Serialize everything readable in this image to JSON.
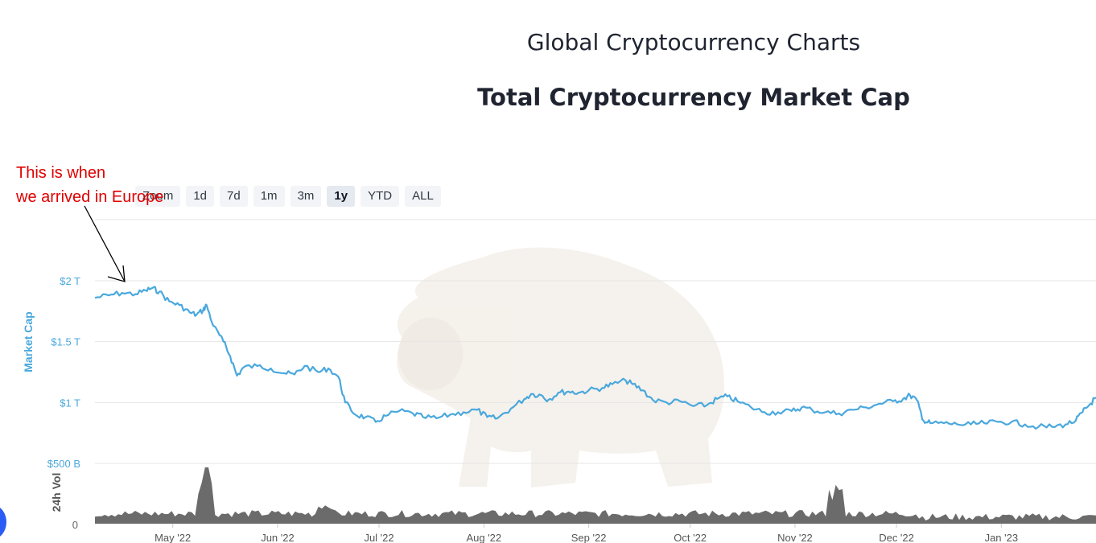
{
  "page": {
    "title": "Global Cryptocurrency Charts",
    "chart_title": "Total Cryptocurrency Market Cap"
  },
  "range_buttons": [
    {
      "label": "Zoom",
      "active": false
    },
    {
      "label": "1d",
      "active": false
    },
    {
      "label": "7d",
      "active": false
    },
    {
      "label": "1m",
      "active": false
    },
    {
      "label": "3m",
      "active": false
    },
    {
      "label": "1y",
      "active": true
    },
    {
      "label": "YTD",
      "active": false
    },
    {
      "label": "ALL",
      "active": false
    }
  ],
  "annotation": {
    "lines": [
      "This is when",
      "we arrived in Europe"
    ],
    "color": "#e00000"
  },
  "colors": {
    "market_cap": "#4aa8dd",
    "volume": "#6b6b6b",
    "grid": "#e6e6e6",
    "axis_label": "#4aa8dd"
  },
  "chart_data": [
    {
      "type": "line",
      "ylabel": "Market Cap",
      "ylim": [
        0,
        2.5
      ],
      "yticks": [
        {
          "value": 0.5,
          "label": "$500 B"
        },
        {
          "value": 1.0,
          "label": "$1 T"
        },
        {
          "value": 1.5,
          "label": "$1.5 T"
        },
        {
          "value": 2.0,
          "label": "$2 T"
        }
      ],
      "xlim": [
        "2022-04-08",
        "2023-01-29"
      ],
      "xticks": [
        {
          "date": "2022-05-01",
          "label": "May '22"
        },
        {
          "date": "2022-06-01",
          "label": "Jun '22"
        },
        {
          "date": "2022-07-01",
          "label": "Jul '22"
        },
        {
          "date": "2022-08-01",
          "label": "Aug '22"
        },
        {
          "date": "2022-09-01",
          "label": "Sep '22"
        },
        {
          "date": "2022-10-01",
          "label": "Oct '22"
        },
        {
          "date": "2022-11-01",
          "label": "Nov '22"
        },
        {
          "date": "2022-12-01",
          "label": "Dec '22"
        },
        {
          "date": "2023-01-01",
          "label": "Jan '23"
        }
      ],
      "grid": true,
      "series": [
        {
          "points": [
            [
              "2022-04-08",
              1.86
            ],
            [
              "2022-04-12",
              1.88
            ],
            [
              "2022-04-16",
              1.9
            ],
            [
              "2022-04-20",
              1.89
            ],
            [
              "2022-04-23",
              1.92
            ],
            [
              "2022-04-25",
              1.94
            ],
            [
              "2022-04-27",
              1.91
            ],
            [
              "2022-04-30",
              1.83
            ],
            [
              "2022-05-03",
              1.8
            ],
            [
              "2022-05-06",
              1.74
            ],
            [
              "2022-05-08",
              1.72
            ],
            [
              "2022-05-10",
              1.76
            ],
            [
              "2022-05-11",
              1.8
            ],
            [
              "2022-05-13",
              1.63
            ],
            [
              "2022-05-16",
              1.5
            ],
            [
              "2022-05-18",
              1.38
            ],
            [
              "2022-05-20",
              1.22
            ],
            [
              "2022-05-22",
              1.29
            ],
            [
              "2022-05-26",
              1.3
            ],
            [
              "2022-05-30",
              1.28
            ],
            [
              "2022-06-03",
              1.24
            ],
            [
              "2022-06-06",
              1.23
            ],
            [
              "2022-06-09",
              1.3
            ],
            [
              "2022-06-13",
              1.25
            ],
            [
              "2022-06-16",
              1.28
            ],
            [
              "2022-06-19",
              1.21
            ],
            [
              "2022-06-21",
              1.0
            ],
            [
              "2022-06-24",
              0.9
            ],
            [
              "2022-06-27",
              0.88
            ],
            [
              "2022-06-30",
              0.84
            ],
            [
              "2022-07-03",
              0.89
            ],
            [
              "2022-07-07",
              0.93
            ],
            [
              "2022-07-11",
              0.91
            ],
            [
              "2022-07-14",
              0.88
            ],
            [
              "2022-07-18",
              0.87
            ],
            [
              "2022-07-22",
              0.9
            ],
            [
              "2022-07-26",
              0.92
            ],
            [
              "2022-07-30",
              0.94
            ],
            [
              "2022-08-02",
              0.88
            ],
            [
              "2022-08-05",
              0.87
            ],
            [
              "2022-08-09",
              0.95
            ],
            [
              "2022-08-13",
              1.03
            ],
            [
              "2022-08-15",
              1.07
            ],
            [
              "2022-08-18",
              1.06
            ],
            [
              "2022-08-20",
              1.02
            ],
            [
              "2022-08-23",
              1.08
            ],
            [
              "2022-08-26",
              1.09
            ],
            [
              "2022-08-29",
              1.08
            ],
            [
              "2022-09-01",
              1.1
            ],
            [
              "2022-09-05",
              1.12
            ],
            [
              "2022-09-08",
              1.15
            ],
            [
              "2022-09-12",
              1.18
            ],
            [
              "2022-09-14",
              1.15
            ],
            [
              "2022-09-17",
              1.1
            ],
            [
              "2022-09-20",
              1.02
            ],
            [
              "2022-09-24",
              1.0
            ],
            [
              "2022-09-28",
              1.01
            ],
            [
              "2022-10-02",
              0.97
            ],
            [
              "2022-10-06",
              0.98
            ],
            [
              "2022-10-09",
              1.03
            ],
            [
              "2022-10-12",
              1.05
            ],
            [
              "2022-10-15",
              1.01
            ],
            [
              "2022-10-19",
              0.96
            ],
            [
              "2022-10-23",
              0.92
            ],
            [
              "2022-10-27",
              0.92
            ],
            [
              "2022-10-31",
              0.93
            ],
            [
              "2022-11-03",
              0.96
            ],
            [
              "2022-11-06",
              0.94
            ],
            [
              "2022-11-10",
              0.92
            ],
            [
              "2022-11-14",
              0.91
            ],
            [
              "2022-11-18",
              0.94
            ],
            [
              "2022-11-22",
              0.96
            ],
            [
              "2022-11-26",
              0.99
            ],
            [
              "2022-11-30",
              1.01
            ],
            [
              "2022-12-03",
              1.03
            ],
            [
              "2022-12-05",
              1.06
            ],
            [
              "2022-12-07",
              1.02
            ],
            [
              "2022-12-09",
              0.85
            ],
            [
              "2022-12-11",
              0.83
            ],
            [
              "2022-12-15",
              0.83
            ],
            [
              "2022-12-19",
              0.82
            ],
            [
              "2022-12-23",
              0.82
            ],
            [
              "2022-12-27",
              0.83
            ],
            [
              "2022-12-31",
              0.84
            ],
            [
              "2023-01-04",
              0.84
            ],
            [
              "2023-01-08",
              0.82
            ],
            [
              "2023-01-12",
              0.8
            ],
            [
              "2023-01-16",
              0.8
            ],
            [
              "2023-01-20",
              0.82
            ],
            [
              "2023-01-23",
              0.85
            ],
            [
              "2023-01-25",
              0.92
            ],
            [
              "2023-01-27",
              0.98
            ],
            [
              "2023-01-29",
              1.04
            ]
          ]
        }
      ]
    },
    {
      "type": "bar",
      "ylabel": "24h Vol",
      "yticks": [
        {
          "value": 0,
          "label": "0"
        }
      ],
      "xlim": [
        "2022-04-08",
        "2023-01-29"
      ],
      "grid": false
    }
  ]
}
